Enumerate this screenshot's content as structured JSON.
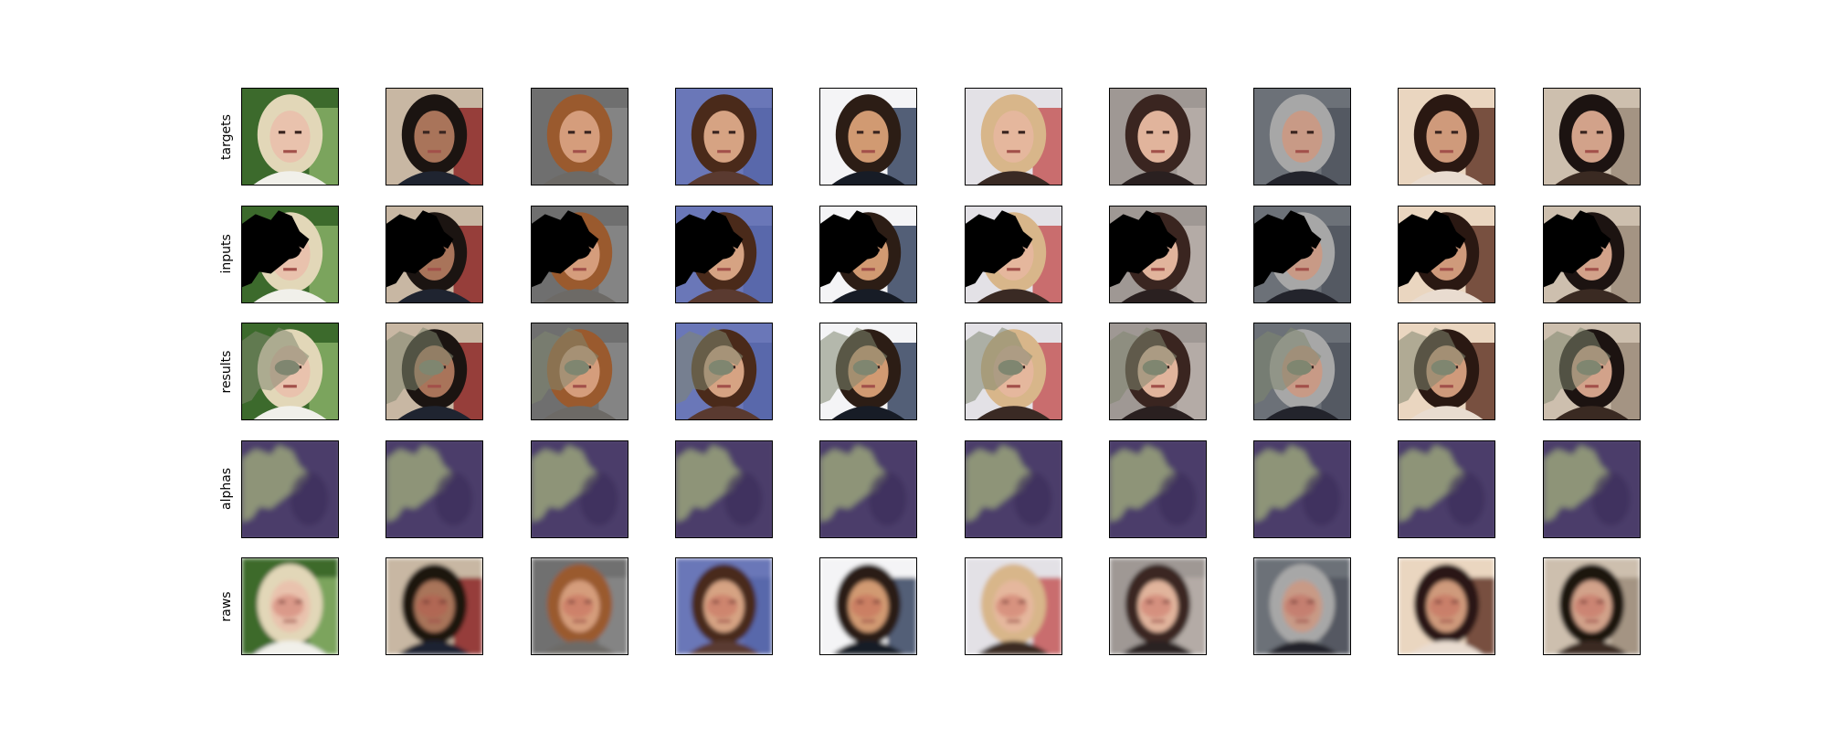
{
  "figure": {
    "rows": [
      {
        "label": "targets",
        "style": "target"
      },
      {
        "label": "inputs",
        "style": "input"
      },
      {
        "label": "results",
        "style": "result"
      },
      {
        "label": "alphas",
        "style": "alpha"
      },
      {
        "label": "raws",
        "style": "raw"
      }
    ],
    "samples": [
      {
        "bg": "#3c6a2c",
        "bg2": "#8bb36a",
        "hair": "#e2d7b8",
        "skin": "#e9c2ad",
        "cloth": "#f1f0ea"
      },
      {
        "bg": "#c8b7a3",
        "bg2": "#8a1f1f",
        "hair": "#1b1411",
        "skin": "#a9745a",
        "cloth": "#1f2430"
      },
      {
        "bg": "#6f6f6f",
        "bg2": "#8a8a8a",
        "hair": "#9a5a2e",
        "skin": "#d59d7c",
        "cloth": "#6d6a66"
      },
      {
        "bg": "#6a77b8",
        "bg2": "#5564a8",
        "hair": "#4a2a1a",
        "skin": "#d6a383",
        "cloth": "#5a3a30"
      },
      {
        "bg": "#f4f4f6",
        "bg2": "#2b3a58",
        "hair": "#2c1d15",
        "skin": "#d19a72",
        "cloth": "#171c26"
      },
      {
        "bg": "#e3e1e6",
        "bg2": "#c25050",
        "hair": "#d8b68a",
        "skin": "#e5b79d",
        "cloth": "#3a2a24"
      },
      {
        "bg": "#9f9894",
        "bg2": "#b9b0aa",
        "hair": "#3a2520",
        "skin": "#e1b49c",
        "cloth": "#2a2020"
      },
      {
        "bg": "#6c7178",
        "bg2": "#4f545c",
        "hair": "#a7a7a7",
        "skin": "#c89a86",
        "cloth": "#23242c"
      },
      {
        "bg": "#ead6c0",
        "bg2": "#5b2e1f",
        "hair": "#2a1812",
        "skin": "#cf9a7b",
        "cloth": "#e9dcd0"
      },
      {
        "bg": "#cdbfae",
        "bg2": "#9a8a78",
        "hair": "#1c1311",
        "skin": "#d2a28a",
        "cloth": "#3a2a22"
      }
    ],
    "colors": {
      "mask": "#000000",
      "fill": "#7f8670",
      "alpha_bg": "#4b3d6a",
      "alpha_fg": "#8e9478"
    }
  }
}
